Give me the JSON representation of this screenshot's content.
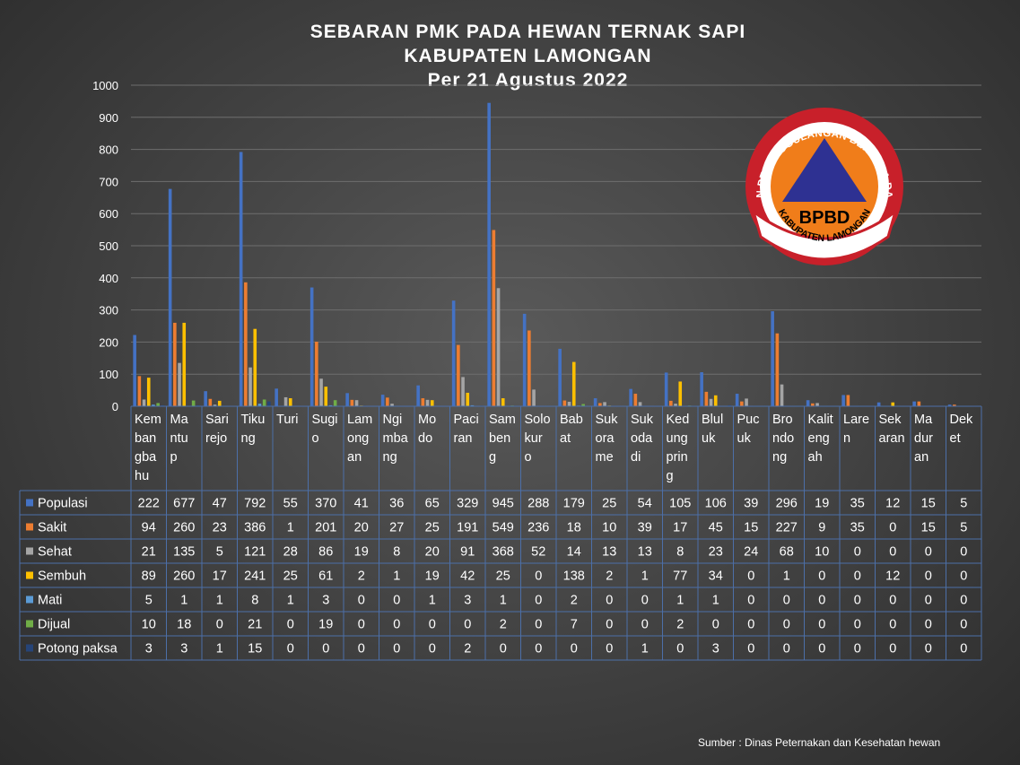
{
  "title": {
    "line1": "SEBARAN PMK PADA HEWAN TERNAK SAPI",
    "line2": "KABUPATEN LAMONGAN",
    "line3": "Per 21 Agustus 2022"
  },
  "source": "Sumber : Dinas Peternakan dan Kesehatan hewan",
  "logo": {
    "arc_text": "BADAN PENANGGULANGAN BENCANA DAERAH",
    "center_text": "BPBD",
    "bottom_text": "KABUPATEN LAMONGAN",
    "colors": {
      "ring": "#c8202a",
      "disc": "#f07d1a",
      "triangle": "#2e3192"
    }
  },
  "chart_data": {
    "type": "bar",
    "title": "SEBARAN PMK PADA HEWAN TERNAK SAPI KABUPATEN LAMONGAN Per 21 Agustus 2022",
    "ylim": [
      0,
      1000
    ],
    "yticks": [
      0,
      100,
      200,
      300,
      400,
      500,
      600,
      700,
      800,
      900,
      1000
    ],
    "grid": true,
    "legend": "data table",
    "categories": [
      "Kembangbahu",
      "Mantup",
      "Sarirejo",
      "Tikung",
      "Turi",
      "Sugio",
      "Lamongan",
      "Ngimbang",
      "Modo",
      "Paciran",
      "Sambeng",
      "Solokuro",
      "Babat",
      "Sukorame",
      "Sukodadi",
      "Kedungpring",
      "Bluluk",
      "Pucuk",
      "Brondong",
      "Kalitengah",
      "Laren",
      "Sekaran",
      "Maduran",
      "Deket"
    ],
    "category_labels": [
      [
        "Kem",
        "ban",
        "gba",
        "hu"
      ],
      [
        "Ma",
        "ntu",
        "p"
      ],
      [
        "Sari",
        "rejo"
      ],
      [
        "Tiku",
        "ng"
      ],
      [
        "Turi"
      ],
      [
        "Sugi",
        "o"
      ],
      [
        "Lam",
        "ong",
        "an"
      ],
      [
        "Ngi",
        "mba",
        "ng"
      ],
      [
        "Mo",
        "do"
      ],
      [
        "Paci",
        "ran"
      ],
      [
        "Sam",
        "ben",
        "g"
      ],
      [
        "Solo",
        "kur",
        "o"
      ],
      [
        "Bab",
        "at"
      ],
      [
        "Suk",
        "ora",
        "me"
      ],
      [
        "Suk",
        "oda",
        "di"
      ],
      [
        "Ked",
        "ung",
        "prin",
        "g"
      ],
      [
        "Blul",
        "uk"
      ],
      [
        "Puc",
        "uk"
      ],
      [
        "Bro",
        "ndo",
        "ng"
      ],
      [
        "Kalit",
        "eng",
        "ah"
      ],
      [
        "Lare",
        "n"
      ],
      [
        "Sek",
        "aran"
      ],
      [
        "Ma",
        "dur",
        "an"
      ],
      [
        "Dek",
        "et"
      ]
    ],
    "series": [
      {
        "name": "Populasi",
        "color": "#4472c4",
        "values": [
          222,
          677,
          47,
          792,
          55,
          370,
          41,
          36,
          65,
          329,
          945,
          288,
          179,
          25,
          54,
          105,
          106,
          39,
          296,
          19,
          35,
          12,
          15,
          5
        ]
      },
      {
        "name": "Sakit",
        "color": "#ed7d31",
        "values": [
          94,
          260,
          23,
          386,
          1,
          201,
          20,
          27,
          25,
          191,
          549,
          236,
          18,
          10,
          39,
          17,
          45,
          15,
          227,
          9,
          35,
          0,
          15,
          5
        ]
      },
      {
        "name": "Sehat",
        "color": "#a5a5a5",
        "values": [
          21,
          135,
          5,
          121,
          28,
          86,
          19,
          8,
          20,
          91,
          368,
          52,
          14,
          13,
          13,
          8,
          23,
          24,
          68,
          10,
          0,
          0,
          0,
          0
        ]
      },
      {
        "name": "Sembuh",
        "color": "#ffc000",
        "values": [
          89,
          260,
          17,
          241,
          25,
          61,
          2,
          1,
          19,
          42,
          25,
          0,
          138,
          2,
          1,
          77,
          34,
          0,
          1,
          0,
          0,
          12,
          0,
          0
        ]
      },
      {
        "name": "Mati",
        "color": "#5b9bd5",
        "values": [
          5,
          1,
          1,
          8,
          1,
          3,
          0,
          0,
          1,
          3,
          1,
          0,
          2,
          0,
          0,
          1,
          1,
          0,
          0,
          0,
          0,
          0,
          0,
          0
        ]
      },
      {
        "name": "Dijual",
        "color": "#70ad47",
        "values": [
          10,
          18,
          0,
          21,
          0,
          19,
          0,
          0,
          0,
          0,
          2,
          0,
          7,
          0,
          0,
          2,
          0,
          0,
          0,
          0,
          0,
          0,
          0,
          0
        ]
      },
      {
        "name": "Potong paksa",
        "color": "#264478",
        "values": [
          3,
          3,
          1,
          15,
          0,
          0,
          0,
          0,
          0,
          2,
          0,
          0,
          0,
          0,
          1,
          0,
          3,
          0,
          0,
          0,
          0,
          0,
          0,
          0
        ]
      }
    ]
  }
}
